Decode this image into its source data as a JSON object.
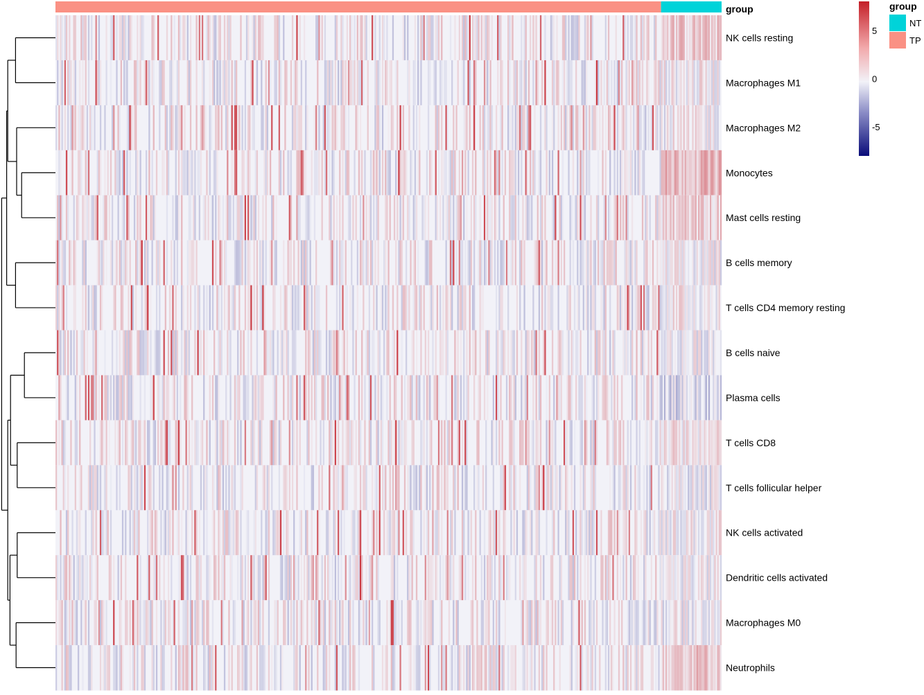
{
  "chart_data": {
    "type": "heatmap",
    "title": "",
    "annotation": {
      "title": "group",
      "legend_title": "group",
      "groups": [
        {
          "name": "NT",
          "color": "#00d3d9"
        },
        {
          "name": "TP",
          "color": "#fa9184"
        }
      ],
      "column_counts": {
        "TP": 410,
        "NT": 41
      }
    },
    "rows": [
      "NK cells resting",
      "Macrophages M1",
      "Macrophages M2",
      "Monocytes",
      "Mast cells resting",
      "B cells memory",
      "T cells CD4 memory resting",
      "B cells naive",
      "Plasma cells",
      "T cells CD8",
      "T cells follicular helper",
      "NK cells activated",
      "Dendritic cells activated",
      "Macrophages M0",
      "Neutrophils"
    ],
    "color_scale": {
      "min": -8,
      "max": 8,
      "low_color": "#0a0d7a",
      "mid_color": "#f2f2f8",
      "high_color": "#c41f28",
      "ticks": [
        {
          "value": 5,
          "label": "5"
        },
        {
          "value": 0,
          "label": "0"
        },
        {
          "value": -5,
          "label": "-5"
        }
      ]
    },
    "dendrogram": {
      "merges": [
        [
          "NK cells resting",
          "Macrophages M1",
          0.5
        ],
        [
          "Monocytes",
          "Mast cells resting",
          0.45
        ],
        [
          "Macrophages M2",
          "Monocytes+Mast cells resting",
          0.58
        ],
        [
          "B cells memory",
          "T cells CD4 memory resting",
          0.55
        ],
        [
          "B cells naive",
          "Plasma cells",
          0.4
        ],
        [
          "T cells CD8",
          "T cells follicular helper",
          0.5
        ],
        [
          "NK cells activated",
          "Dendritic cells activated",
          0.48
        ],
        [
          "Macrophages M0",
          "Neutrophils",
          0.53
        ]
      ]
    }
  }
}
